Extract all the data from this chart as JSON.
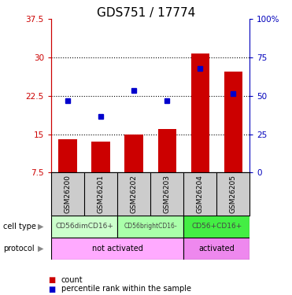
{
  "title": "GDS751 / 17774",
  "samples": [
    "GSM26200",
    "GSM26201",
    "GSM26202",
    "GSM26203",
    "GSM26204",
    "GSM26205"
  ],
  "bar_values": [
    14.0,
    13.5,
    15.0,
    16.0,
    30.8,
    27.2
  ],
  "percentile_values": [
    21.5,
    18.5,
    23.5,
    21.5,
    27.8,
    23.0
  ],
  "bar_color": "#cc0000",
  "dot_color": "#0000cc",
  "ylim_left": [
    7.5,
    37.5
  ],
  "ylim_right": [
    0,
    100
  ],
  "yticks_left": [
    7.5,
    15.0,
    22.5,
    30.0,
    37.5
  ],
  "yticks_right": [
    0,
    25,
    50,
    75,
    100
  ],
  "ytick_labels_left": [
    "7.5",
    "15",
    "22.5",
    "30",
    "37.5"
  ],
  "ytick_labels_right": [
    "0",
    "25",
    "50",
    "75",
    "100%"
  ],
  "cell_type_labels": [
    {
      "label": "CD56dimCD16+",
      "start": 0,
      "end": 2,
      "color": "#ccffcc"
    },
    {
      "label": "CD56brightCD16-",
      "start": 2,
      "end": 4,
      "color": "#aaffaa"
    },
    {
      "label": "CD56+CD16+",
      "start": 4,
      "end": 6,
      "color": "#44ee44"
    }
  ],
  "protocol_labels": [
    {
      "label": "not activated",
      "start": 0,
      "end": 4,
      "color": "#ffaaff"
    },
    {
      "label": "activated",
      "start": 4,
      "end": 6,
      "color": "#ee88ee"
    }
  ],
  "legend_items": [
    {
      "label": "count",
      "color": "#cc0000"
    },
    {
      "label": "percentile rank within the sample",
      "color": "#0000cc"
    }
  ],
  "left_axis_color": "#cc0000",
  "right_axis_color": "#0000bb",
  "sample_box_color": "#cccccc",
  "background_color": "#ffffff",
  "title_fontsize": 11,
  "tick_label_fontsize": 7.5,
  "sample_fontsize": 6.5,
  "annot_fontsize": 7,
  "legend_fontsize": 7,
  "bar_width": 0.55
}
